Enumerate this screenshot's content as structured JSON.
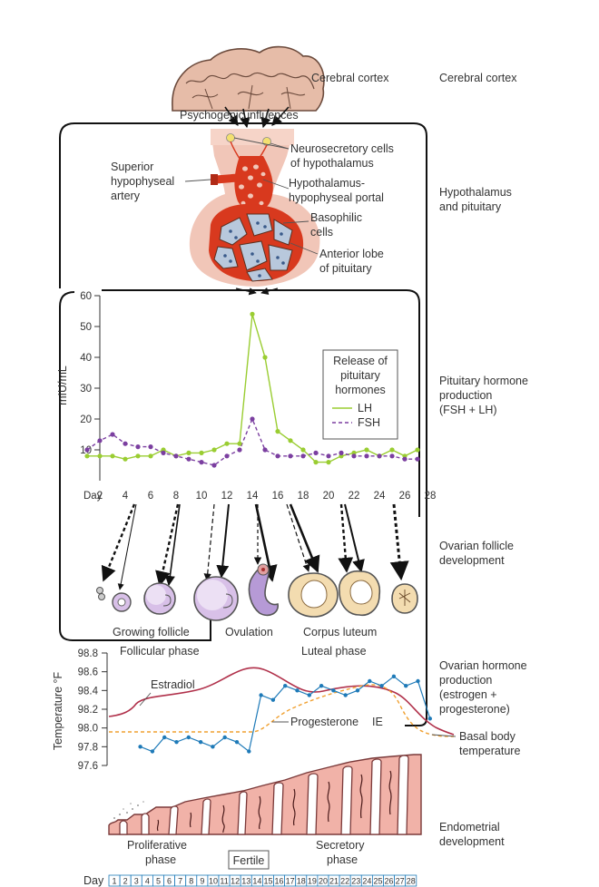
{
  "labels": {
    "cerebral_cortex": "Cerebral cortex",
    "psychogenic": "Psychogenic influences",
    "neurosecretory_1": "Neurosecretory cells",
    "neurosecretory_2": "of hypothalamus",
    "superior_1": "Superior",
    "superior_2": "hypophyseal",
    "superior_3": "artery",
    "portal_1": "Hypothalamus-",
    "portal_2": "hypophyseal portal",
    "basophilic_1": "Basophilic",
    "basophilic_2": "cells",
    "anterior_1": "Anterior lobe",
    "anterior_2": "of pituitary",
    "legend_1": "Release of",
    "legend_2": "pituitary",
    "legend_3": "hormones",
    "growing_follicle": "Growing follicle",
    "ovulation": "Ovulation",
    "corpus_luteum": "Corpus luteum",
    "follicular_phase": "Follicular phase",
    "luteal_phase": "Luteal phase",
    "estradiol": "Estradiol",
    "progesterone": "Progesterone",
    "ie": "IE",
    "basal_1": "Basal body",
    "basal_2": "temperature",
    "proliferative_1": "Proliferative",
    "proliferative_2": "phase",
    "fertile": "Fertile",
    "secretory_1": "Secretory",
    "secretory_2": "phase"
  },
  "side_labels": [
    [
      "Cerebral cortex"
    ],
    [
      "Hypothalamus",
      "and pituitary"
    ],
    [
      "Pituitary hormone",
      "production",
      "(FSH + LH)"
    ],
    [
      "Ovarian follicle",
      "development"
    ],
    [
      "Ovarian hormone",
      "production",
      "(estrogen +",
      "progesterone)"
    ],
    [
      "Endometrial",
      "development"
    ]
  ],
  "colors": {
    "lh": "#9acd32",
    "fsh": "#7b3fa0",
    "estradiol": "#b0304a",
    "progesterone": "#f0a030",
    "bbt": "#1e7ab8",
    "tissue": "#e8a898",
    "vessel": "#d8391e"
  },
  "chart_data": [
    {
      "type": "line",
      "ylabel": "mIU/mL",
      "ylim": [
        0,
        60
      ],
      "yticks": [
        10,
        20,
        30,
        40,
        50,
        60
      ],
      "xlabel_prefix": "Day",
      "xticks": [
        2,
        4,
        6,
        8,
        10,
        12,
        14,
        16,
        18,
        20,
        22,
        24,
        26,
        28
      ],
      "series": [
        {
          "name": "LH",
          "x": [
            1,
            2,
            3,
            4,
            5,
            6,
            7,
            8,
            9,
            10,
            11,
            12,
            13,
            14,
            15,
            16,
            17,
            18,
            19,
            20,
            21,
            22,
            23,
            24,
            25,
            26,
            27
          ],
          "values": [
            8,
            8,
            8,
            7,
            8,
            8,
            10,
            8,
            9,
            9,
            10,
            12,
            12,
            54,
            40,
            16,
            13,
            10,
            6,
            6,
            8,
            9,
            10,
            8,
            10,
            8,
            10
          ]
        },
        {
          "name": "FSH",
          "x": [
            1,
            2,
            3,
            4,
            5,
            6,
            7,
            8,
            9,
            10,
            11,
            12,
            13,
            14,
            15,
            16,
            17,
            18,
            19,
            20,
            21,
            22,
            23,
            24,
            25,
            26,
            27
          ],
          "values": [
            10,
            13,
            15,
            12,
            11,
            11,
            9,
            8,
            7,
            6,
            5,
            8,
            10,
            20,
            10,
            8,
            8,
            8,
            9,
            8,
            9,
            8,
            8,
            8,
            8,
            7,
            7
          ]
        }
      ]
    },
    {
      "type": "line",
      "ylabel": "Temperature °F",
      "ylim": [
        97.6,
        98.8
      ],
      "yticks": [
        97.6,
        97.8,
        98.0,
        98.2,
        98.4,
        98.6,
        98.8
      ],
      "bbt": {
        "x": [
          3,
          4,
          5,
          6,
          7,
          8,
          9,
          10,
          11,
          12,
          13,
          14,
          15,
          16,
          17,
          18,
          19,
          20,
          21,
          22,
          23,
          24,
          25,
          26,
          27
        ],
        "values": [
          97.8,
          97.75,
          97.9,
          97.85,
          97.9,
          97.85,
          97.8,
          97.9,
          97.85,
          97.75,
          98.35,
          98.3,
          98.45,
          98.4,
          98.35,
          98.45,
          98.4,
          98.35,
          98.4,
          98.5,
          98.45,
          98.55,
          98.45,
          98.5,
          98.1
        ]
      }
    }
  ],
  "day_strip": [
    1,
    2,
    3,
    4,
    5,
    6,
    7,
    8,
    9,
    10,
    11,
    12,
    13,
    14,
    15,
    16,
    17,
    18,
    19,
    20,
    21,
    22,
    23,
    24,
    25,
    26,
    27,
    28
  ],
  "day_strip_label": "Day"
}
